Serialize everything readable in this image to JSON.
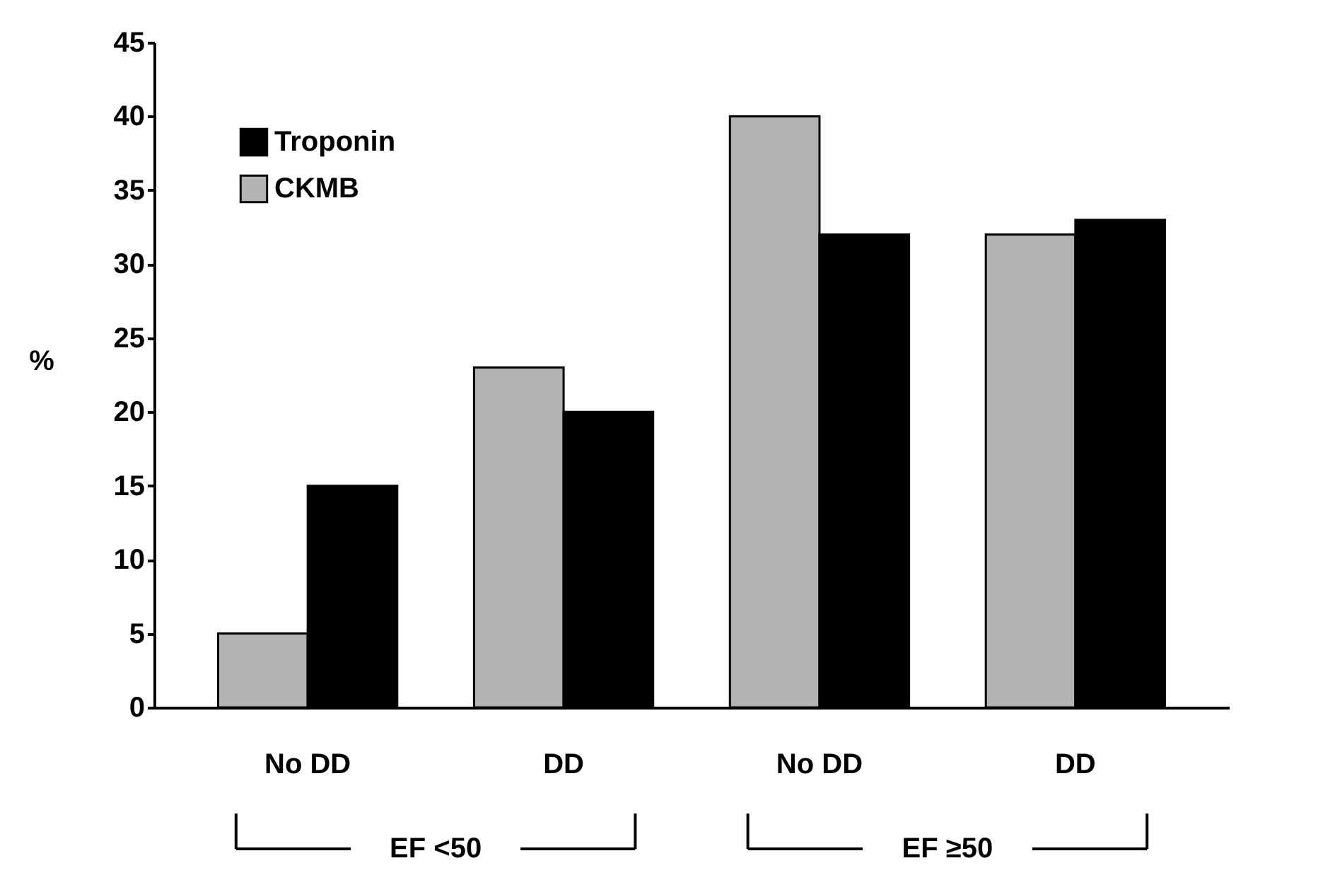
{
  "chart_data": {
    "type": "bar",
    "categories": [
      "No DD",
      "DD",
      "No DD",
      "DD"
    ],
    "ylabel": "%",
    "series": [
      {
        "name": "CKMB",
        "color": "#b3b3b3",
        "values": [
          5,
          23,
          40,
          32
        ]
      },
      {
        "name": "Troponin",
        "color": "#000000",
        "values": [
          15,
          20,
          32,
          33
        ]
      }
    ],
    "ylim": [
      0,
      45
    ],
    "yticks": [
      0,
      5,
      10,
      15,
      20,
      25,
      30,
      35,
      40,
      45
    ],
    "grid": false,
    "legend": "top left",
    "annotations": [
      "EF <50",
      "EF ≥50"
    ]
  }
}
